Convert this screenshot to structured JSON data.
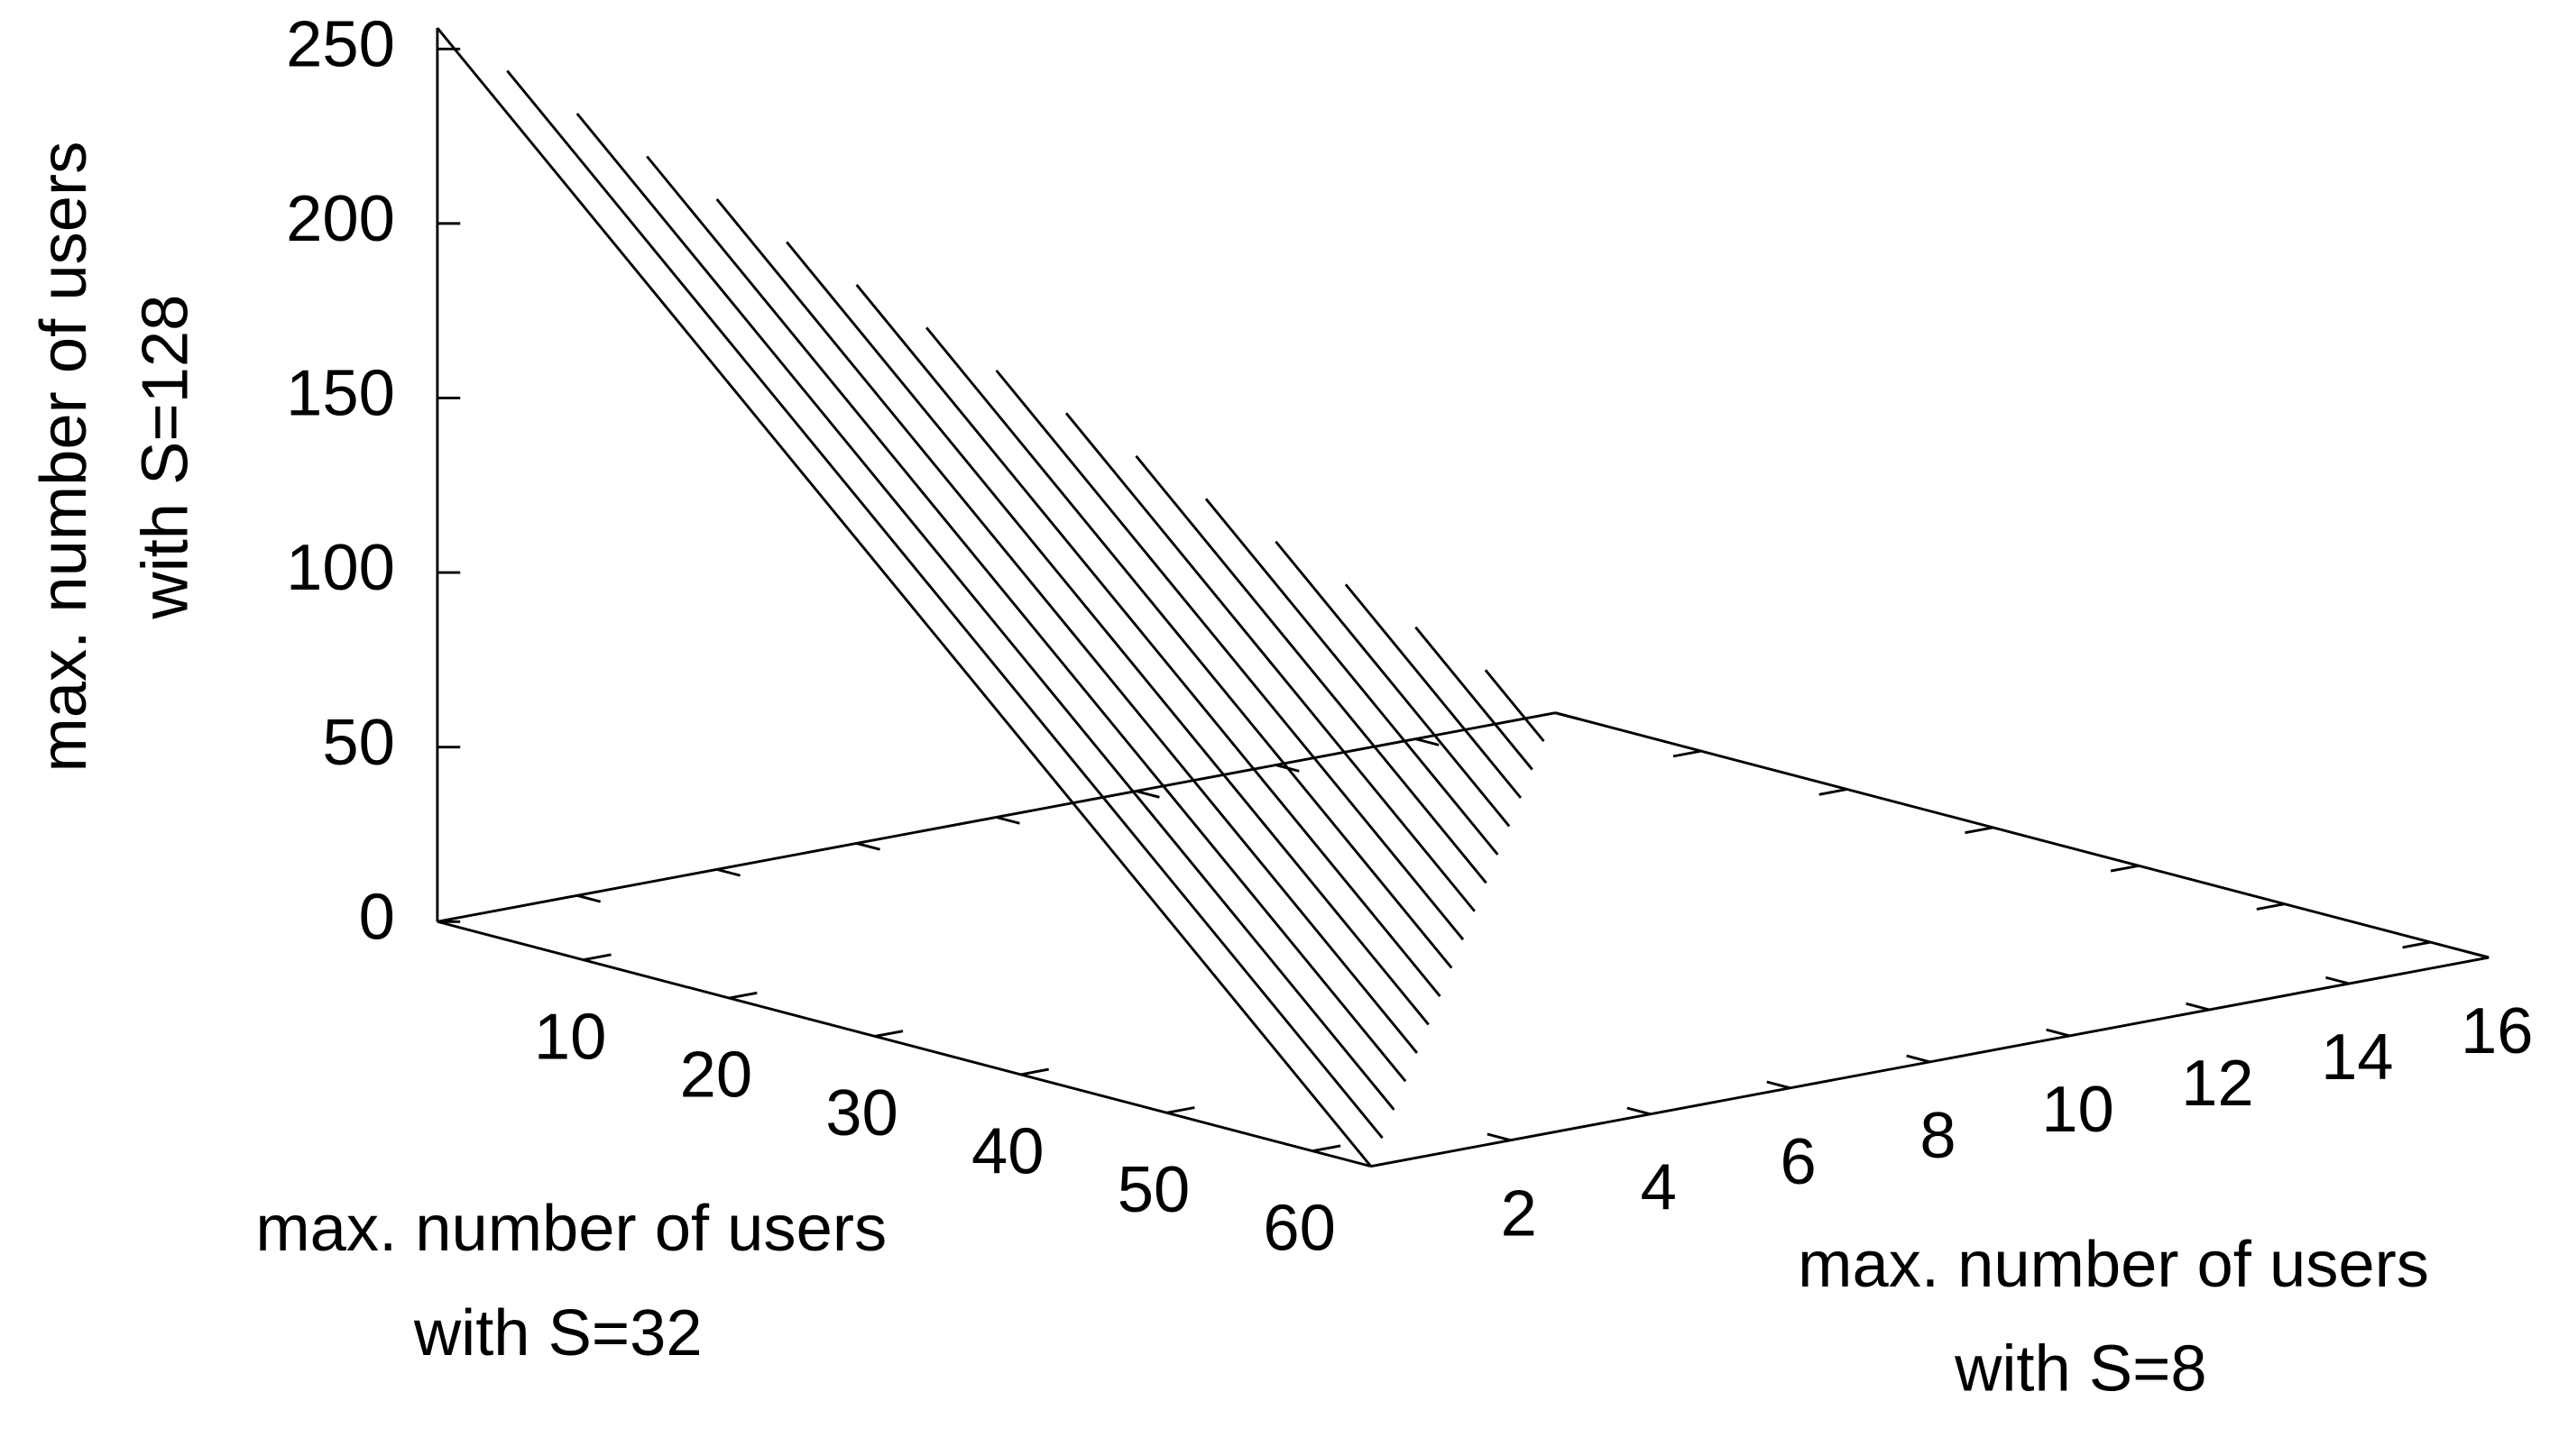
{
  "chart_data": {
    "type": "surface3d",
    "xlabel": [
      "max. number of users",
      "with S=32"
    ],
    "ylabel": [
      "max. number of users",
      "with S=8"
    ],
    "zlabel": [
      "max. number of users",
      "with S=128"
    ],
    "xlim": [
      0,
      64
    ],
    "ylim": [
      0,
      16
    ],
    "zlim": [
      0,
      256
    ],
    "xticks": [
      10,
      20,
      30,
      40,
      50,
      60
    ],
    "yticks": [
      2,
      4,
      6,
      8,
      10,
      12,
      14,
      16
    ],
    "zticks": [
      0,
      50,
      100,
      150,
      200,
      250
    ],
    "color": "#000000",
    "lines": [
      {
        "y": 0,
        "x": [
          0,
          64
        ],
        "z": [
          256,
          0
        ]
      },
      {
        "y": 1,
        "x": [
          0,
          60
        ],
        "z": [
          240,
          0
        ]
      },
      {
        "y": 2,
        "x": [
          0,
          56
        ],
        "z": [
          224,
          0
        ]
      },
      {
        "y": 3,
        "x": [
          0,
          52
        ],
        "z": [
          208,
          0
        ]
      },
      {
        "y": 4,
        "x": [
          0,
          48
        ],
        "z": [
          192,
          0
        ]
      },
      {
        "y": 5,
        "x": [
          0,
          44
        ],
        "z": [
          176,
          0
        ]
      },
      {
        "y": 6,
        "x": [
          0,
          40
        ],
        "z": [
          160,
          0
        ]
      },
      {
        "y": 7,
        "x": [
          0,
          36
        ],
        "z": [
          144,
          0
        ]
      },
      {
        "y": 8,
        "x": [
          0,
          32
        ],
        "z": [
          128,
          0
        ]
      },
      {
        "y": 9,
        "x": [
          0,
          28
        ],
        "z": [
          112,
          0
        ]
      },
      {
        "y": 10,
        "x": [
          0,
          24
        ],
        "z": [
          96,
          0
        ]
      },
      {
        "y": 11,
        "x": [
          0,
          20
        ],
        "z": [
          80,
          0
        ]
      },
      {
        "y": 12,
        "x": [
          0,
          16
        ],
        "z": [
          64,
          0
        ]
      },
      {
        "y": 13,
        "x": [
          0,
          12
        ],
        "z": [
          48,
          0
        ]
      },
      {
        "y": 14,
        "x": [
          0,
          8
        ],
        "z": [
          32,
          0
        ]
      },
      {
        "y": 15,
        "x": [
          0,
          4
        ],
        "z": [
          16,
          0
        ]
      }
    ]
  }
}
